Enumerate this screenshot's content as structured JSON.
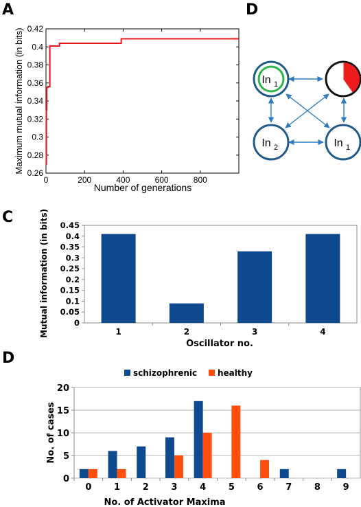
{
  "panels": {
    "a": {
      "label": "A"
    },
    "c": {
      "label": "C"
    },
    "d_top": {
      "label": "D"
    },
    "d_bottom": {
      "label": "D"
    }
  },
  "diagram": {
    "nodes": [
      {
        "id": "in1_top",
        "label_main": "In",
        "label_sub": "1"
      },
      {
        "id": "pie",
        "label_main": "",
        "label_sub": ""
      },
      {
        "id": "in2",
        "label_main": "In",
        "label_sub": "2"
      },
      {
        "id": "in1_bottom",
        "label_main": "In",
        "label_sub": "1"
      }
    ],
    "colors": {
      "node_border": "#1f5a8a",
      "inner_ring": "#2eb34a",
      "pie_fill": "#ee1c1c",
      "arrow": "#2f7bbd"
    }
  },
  "chart_data": [
    {
      "id": "A",
      "type": "line",
      "title": "",
      "xlabel": "Number of generations",
      "ylabel": "Maximum mutual information (in bits)",
      "xlim": [
        0,
        1000
      ],
      "ylim": [
        0.26,
        0.42
      ],
      "xticks": [
        "0",
        "200",
        "400",
        "600",
        "800"
      ],
      "yticks": [
        "0.26",
        "0.28",
        "0.3",
        "0.32",
        "0.34",
        "0.36",
        "0.38",
        "0.4",
        "0.42"
      ],
      "series": [
        {
          "color": "#e8141b",
          "step": true,
          "x": [
            0,
            2,
            4,
            10,
            20,
            70,
            390,
            1000
          ],
          "y": [
            0.27,
            0.33,
            0.355,
            0.356,
            0.401,
            0.404,
            0.409,
            0.409
          ]
        }
      ]
    },
    {
      "id": "C",
      "type": "bar",
      "title": "",
      "xlabel": "Oscillator no.",
      "ylabel": "Mutual information (in bits)",
      "categories": [
        "1",
        "2",
        "3",
        "4"
      ],
      "values": [
        0.41,
        0.09,
        0.33,
        0.41
      ],
      "ylim": [
        0,
        0.45
      ],
      "yticks": [
        "0",
        "0.05",
        "0.1",
        "0.15",
        "0.2",
        "0.25",
        "0.3",
        "0.35",
        "0.4",
        "0.45"
      ],
      "color": "#0f4a8e",
      "grid": false
    },
    {
      "id": "D",
      "type": "bar",
      "title": "",
      "xlabel": "No. of Activator Maxima",
      "ylabel": "No. of cases",
      "categories": [
        "0",
        "1",
        "2",
        "3",
        "4",
        "5",
        "6",
        "7",
        "8",
        "9"
      ],
      "ylim": [
        0,
        20
      ],
      "yticks": [
        "0",
        "5",
        "10",
        "15",
        "20"
      ],
      "legend_position": "top-center",
      "series": [
        {
          "name": "schizophrenic",
          "color": "#0f4a8e",
          "values": [
            2,
            6,
            7,
            9,
            17,
            0,
            0,
            2,
            0,
            2
          ]
        },
        {
          "name": "healthy",
          "color": "#ff4f0f",
          "values": [
            2,
            2,
            0,
            5,
            10,
            16,
            4,
            0,
            0,
            0
          ]
        }
      ],
      "grid": true
    }
  ]
}
